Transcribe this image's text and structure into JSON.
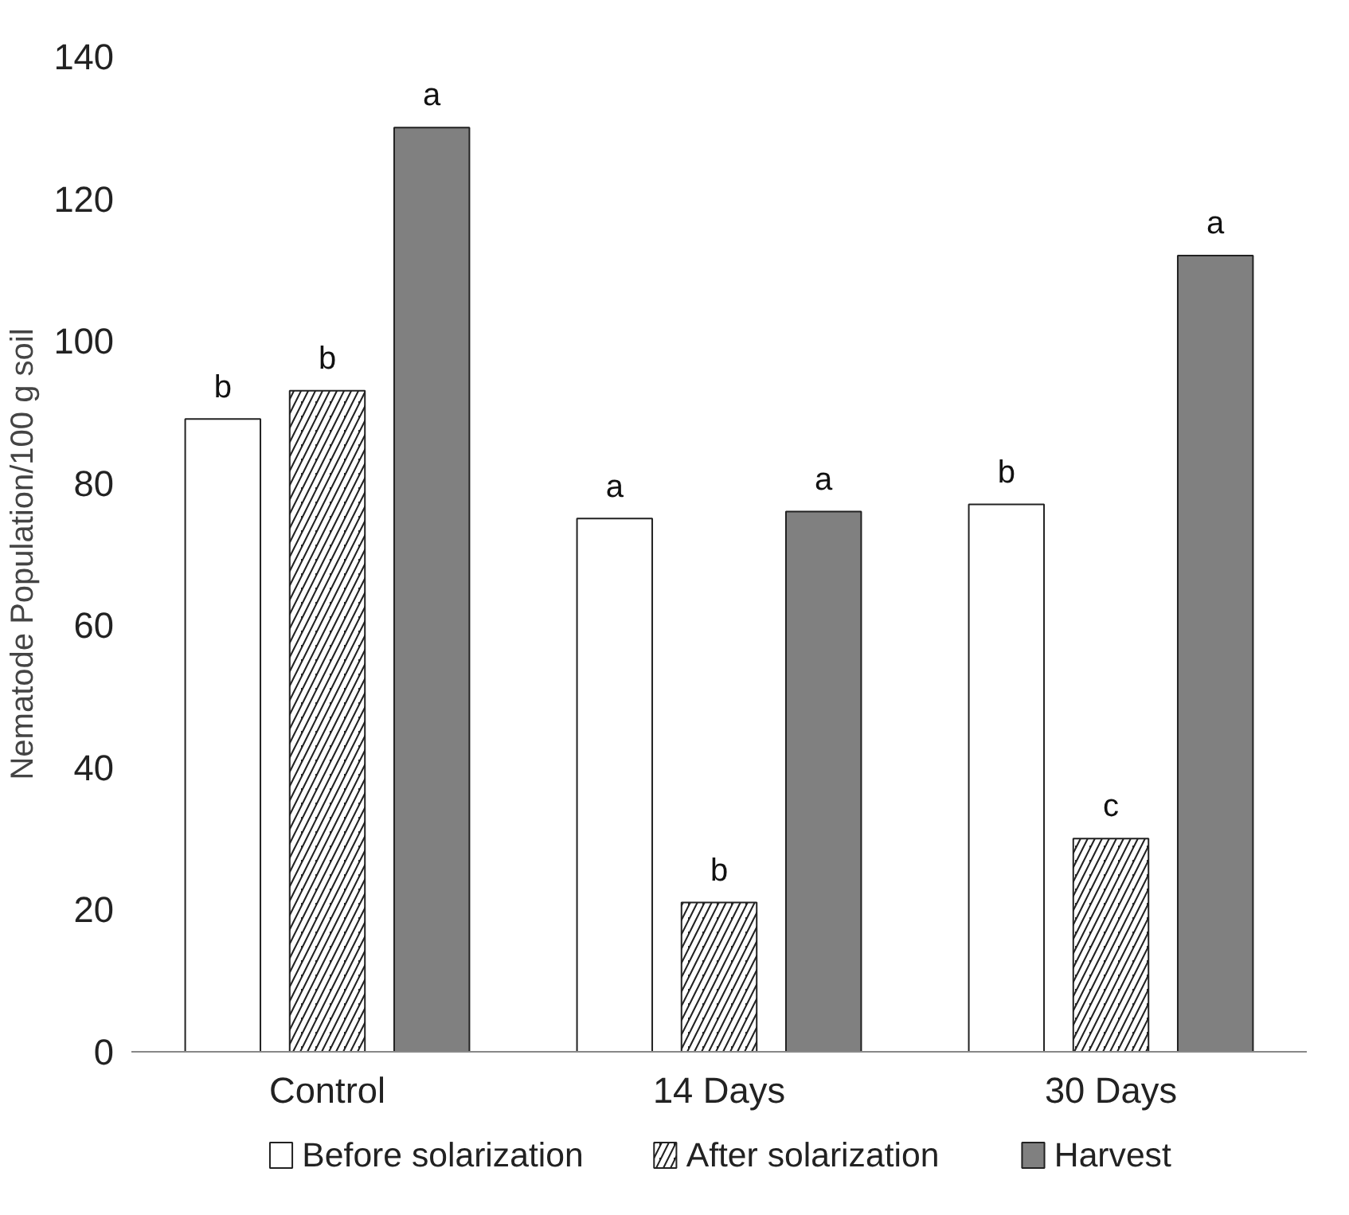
{
  "chart_data": {
    "type": "bar",
    "ylabel": "Nematode Population/100 g soil",
    "categories": [
      "Control",
      "14 Days",
      "30 Days"
    ],
    "series": [
      {
        "name": "Before solarization",
        "color": "#ffffff",
        "values": [
          89,
          75,
          77
        ],
        "value_labels": [
          "b",
          "a",
          "b"
        ]
      },
      {
        "name": "After solarization",
        "color": "#222222",
        "values": [
          93,
          21,
          30
        ],
        "value_labels": [
          "b",
          "b",
          "c"
        ]
      },
      {
        "name": "Harvest",
        "color": "#808080",
        "values": [
          130,
          76,
          112
        ],
        "value_labels": [
          "a",
          "a",
          "a"
        ]
      }
    ],
    "ylim": [
      0,
      140
    ],
    "yticks": [
      0,
      20,
      40,
      60,
      80,
      100,
      120,
      140
    ],
    "grid": false,
    "legend": "bottom"
  }
}
